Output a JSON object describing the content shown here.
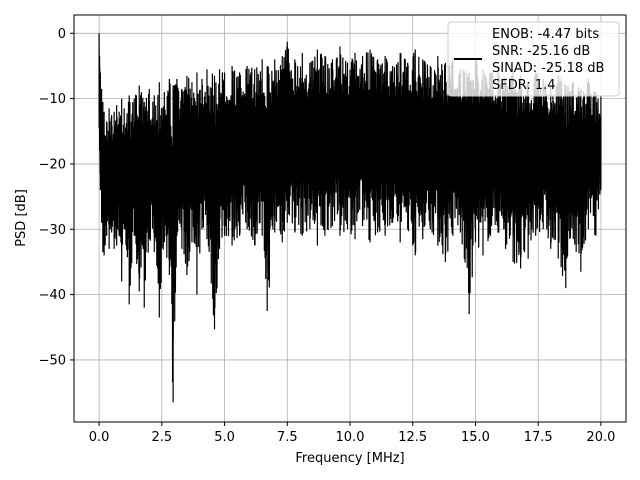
{
  "chart_data": {
    "type": "line",
    "title": "",
    "xlabel": "Frequency [MHz]",
    "ylabel": "PSD [dB]",
    "xlim": [
      -1.0,
      21.0
    ],
    "ylim": [
      -59.5,
      2.8
    ],
    "xticks": [
      0.0,
      2.5,
      5.0,
      7.5,
      10.0,
      12.5,
      15.0,
      17.5,
      20.0
    ],
    "xtick_labels": [
      "0.0",
      "2.5",
      "5.0",
      "7.5",
      "10.0",
      "12.5",
      "15.0",
      "17.5",
      "20.0"
    ],
    "yticks": [
      0,
      -10,
      -20,
      -30,
      -40,
      -50
    ],
    "ytick_labels": [
      "0",
      "−10",
      "−20",
      "−30",
      "−40",
      "−50"
    ],
    "grid": true,
    "legend_position": "upper-right",
    "legend_lines": [
      "ENOB: -4.47 bits",
      "SNR: -25.16 dB",
      "SINAD: -25.18 dB",
      "SFDR: 1.4"
    ],
    "line_color": "#000000",
    "series": [
      {
        "description_note": "",
        "x": [
          0.0,
          0.02,
          0.05,
          0.1,
          0.15,
          0.2,
          0.3,
          0.4,
          0.5,
          0.6,
          0.7,
          0.8,
          0.9,
          1.0,
          1.2,
          1.4,
          1.6,
          1.8,
          2.0,
          2.2,
          2.4,
          2.6,
          2.8,
          2.95,
          3.1,
          3.3,
          3.5,
          3.7,
          3.9,
          4.1,
          4.3,
          4.6,
          4.8,
          5.0,
          5.3,
          5.6,
          5.9,
          6.2,
          6.5,
          6.7,
          7.0,
          7.3,
          7.5,
          7.8,
          8.1,
          8.4,
          8.7,
          9.0,
          9.3,
          9.6,
          9.9,
          10.2,
          10.5,
          10.8,
          11.1,
          11.4,
          11.7,
          12.0,
          12.3,
          12.6,
          12.9,
          13.2,
          13.5,
          13.8,
          14.1,
          14.4,
          14.75,
          15.0,
          15.3,
          15.6,
          15.9,
          16.2,
          16.5,
          16.8,
          17.1,
          17.4,
          17.7,
          18.0,
          18.3,
          18.6,
          18.9,
          19.2,
          19.5,
          19.8,
          20.0
        ],
        "y_upper": [
          0.0,
          -3.5,
          -6.0,
          -8.5,
          -10.5,
          -12.0,
          -13.5,
          -11.5,
          -12.5,
          -12.0,
          -11.0,
          -12.0,
          -10.0,
          -11.5,
          -9.5,
          -10.0,
          -8.0,
          -10.5,
          -8.5,
          -9.5,
          -7.5,
          -9.0,
          -7.0,
          -8.0,
          -7.0,
          -8.5,
          -6.5,
          -7.5,
          -6.0,
          -7.0,
          -5.5,
          -6.5,
          -5.5,
          -6.0,
          -5.0,
          -6.0,
          -5.0,
          -5.5,
          -4.0,
          -5.0,
          -4.0,
          -3.5,
          -1.3,
          -4.0,
          -3.0,
          -4.5,
          -2.5,
          -3.5,
          -4.0,
          -2.0,
          -4.5,
          -3.0,
          -3.5,
          -2.5,
          -4.0,
          -3.5,
          -5.0,
          -3.0,
          -4.5,
          -2.5,
          -4.0,
          -5.0,
          -3.5,
          -4.5,
          -4.0,
          -5.5,
          -6.0,
          -4.0,
          -5.5,
          -6.0,
          -5.0,
          -7.0,
          -5.5,
          -6.5,
          -7.5,
          -6.0,
          -7.0,
          -8.0,
          -6.5,
          -8.0,
          -7.5,
          -8.5,
          -7.0,
          -9.0,
          -9.5
        ],
        "y_lower": [
          -14.5,
          -18.0,
          -24.0,
          -29.0,
          -33.5,
          -34.0,
          -31.0,
          -33.0,
          -30.5,
          -33.0,
          -32.5,
          -31.0,
          -38.0,
          -30.0,
          -41.5,
          -31.0,
          -39.5,
          -42.0,
          -31.5,
          -33.5,
          -43.5,
          -32.0,
          -37.0,
          -56.5,
          -31.0,
          -33.0,
          -37.0,
          -32.0,
          -40.0,
          -30.0,
          -31.5,
          -45.3,
          -33.0,
          -31.0,
          -32.5,
          -31.0,
          -30.0,
          -32.5,
          -31.0,
          -42.5,
          -30.5,
          -32.0,
          -29.0,
          -30.5,
          -31.0,
          -30.0,
          -32.5,
          -31.0,
          -29.5,
          -31.0,
          -30.0,
          -31.5,
          -29.5,
          -32.0,
          -30.5,
          -31.0,
          -29.0,
          -32.0,
          -30.0,
          -34.0,
          -31.5,
          -30.0,
          -32.5,
          -35.0,
          -31.0,
          -30.5,
          -43.0,
          -32.0,
          -34.0,
          -31.0,
          -30.5,
          -33.0,
          -35.0,
          -36.0,
          -34.5,
          -31.0,
          -30.0,
          -33.0,
          -34.5,
          -39.0,
          -31.5,
          -36.5,
          -30.0,
          -31.0,
          -24.0
        ]
      }
    ]
  }
}
